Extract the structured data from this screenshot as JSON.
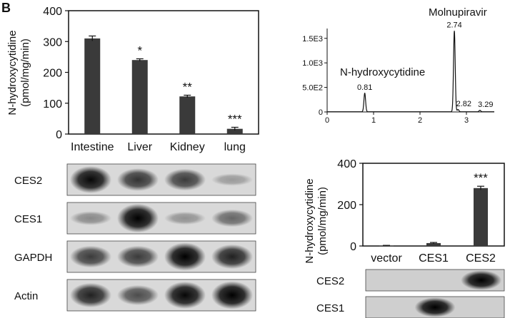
{
  "panel_letter": "B",
  "chart_data": [
    {
      "id": "bar_tissues",
      "type": "bar",
      "ylabel_line1": "N-hydroxycytidine",
      "ylabel_line2": "(pmol/mg/min)",
      "categories": [
        "Intestine",
        "Liver",
        "Kidney",
        "lung"
      ],
      "values": [
        310,
        240,
        122,
        17
      ],
      "errors": [
        8,
        4,
        4,
        5
      ],
      "significance": [
        "",
        "*",
        "**",
        "***"
      ],
      "ylim": [
        0,
        400
      ],
      "yticks": [
        0,
        100,
        200,
        300,
        400
      ],
      "bar_color": "#3a3a3a"
    },
    {
      "id": "chromatogram",
      "type": "line",
      "xlim": [
        0,
        3.6
      ],
      "ylim": [
        0,
        1700
      ],
      "xticks": [
        0,
        1,
        2,
        3
      ],
      "yticks": [
        0,
        500,
        1000,
        1500
      ],
      "ytick_labels": [
        "0",
        "5.0E2",
        "1.0E3",
        "1.5E3"
      ],
      "peaks": [
        {
          "rt": 0.81,
          "height": 380,
          "label": "0.81"
        },
        {
          "rt": 2.74,
          "height": 1650,
          "label": "2.74"
        },
        {
          "rt": 2.82,
          "height": 45,
          "label": "2.82"
        },
        {
          "rt": 3.29,
          "height": 30,
          "label": "3.29"
        }
      ],
      "annotations": [
        "N-hydroxycytidine",
        "Molnupiravir"
      ]
    },
    {
      "id": "bar_ces",
      "type": "bar",
      "ylabel_line1": "N-hydroxycytidine",
      "ylabel_line2": "(pmol/mg/min)",
      "categories": [
        "vector",
        "CES1",
        "CES2"
      ],
      "values": [
        2,
        14,
        280
      ],
      "errors": [
        1,
        3,
        9
      ],
      "significance": [
        "",
        "",
        "***"
      ],
      "ylim": [
        0,
        400
      ],
      "yticks": [
        0,
        200,
        400
      ],
      "bar_color": "#3a3a3a"
    }
  ],
  "western_blot_left": {
    "rows": [
      {
        "label": "CES2",
        "bands": [
          0.9,
          0.65,
          0.6,
          0.05
        ]
      },
      {
        "label": "CES1",
        "bands": [
          0.15,
          1.0,
          0.1,
          0.35
        ]
      },
      {
        "label": "GAPDH",
        "bands": [
          0.6,
          0.6,
          0.95,
          0.75
        ]
      },
      {
        "label": "Actin",
        "bands": [
          0.75,
          0.5,
          0.9,
          0.95
        ]
      }
    ]
  },
  "western_blot_right": {
    "rows": [
      {
        "label": "CES2",
        "bands": [
          0.0,
          0.0,
          1.0
        ]
      },
      {
        "label": "CES1",
        "bands": [
          0.0,
          1.0,
          0.0
        ]
      }
    ]
  }
}
